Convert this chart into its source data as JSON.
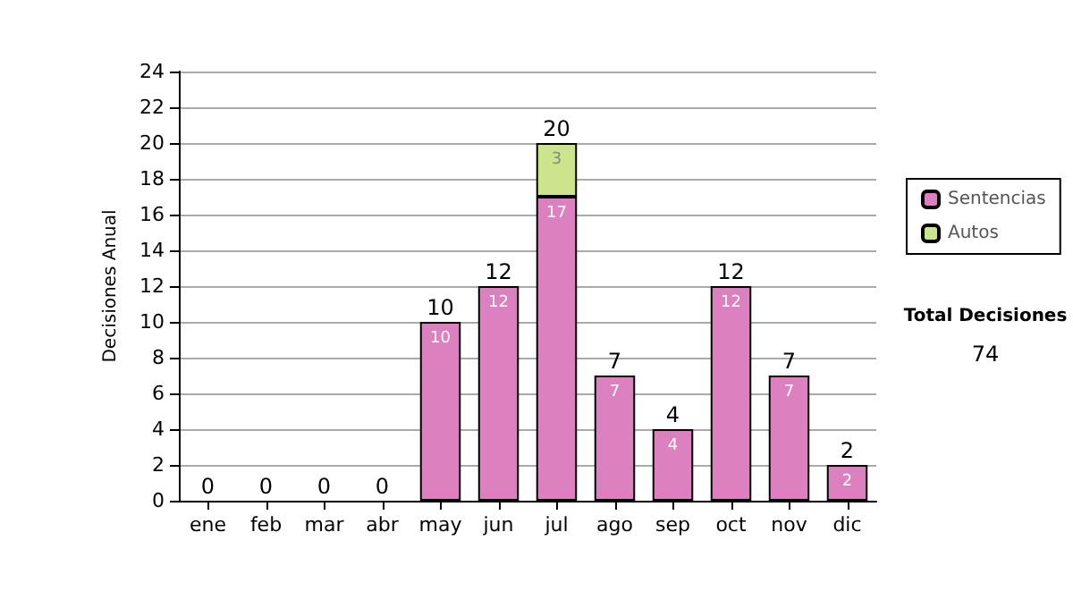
{
  "chart_data": {
    "type": "bar",
    "stacked": true,
    "ylabel": "Decisiones Anual",
    "categories": [
      "ene",
      "feb",
      "mar",
      "abr",
      "may",
      "jun",
      "jul",
      "ago",
      "sep",
      "oct",
      "nov",
      "dic"
    ],
    "series": [
      {
        "name": "Sentencias",
        "color": "#dd80c0",
        "values": [
          0,
          0,
          0,
          0,
          10,
          12,
          17,
          7,
          4,
          12,
          7,
          2
        ],
        "value_labels": [
          null,
          null,
          null,
          null,
          "10",
          "12",
          "17",
          "7",
          "4",
          "12",
          "7",
          "2"
        ]
      },
      {
        "name": "Autos",
        "color": "#cce48c",
        "values": [
          0,
          0,
          0,
          0,
          0,
          0,
          3,
          0,
          0,
          0,
          0,
          0
        ],
        "value_labels": [
          null,
          null,
          null,
          null,
          null,
          null,
          "3",
          null,
          null,
          null,
          null,
          null
        ]
      }
    ],
    "totals": [
      "0",
      "0",
      "0",
      "0",
      "10",
      "12",
      "20",
      "7",
      "4",
      "12",
      "7",
      "2"
    ],
    "ylim": [
      0,
      24
    ],
    "yticks": [
      0,
      2,
      4,
      6,
      8,
      10,
      12,
      14,
      16,
      18,
      20,
      22,
      24
    ],
    "grid": "y",
    "legend": "right",
    "annotations": [
      "Total Decisiones",
      "74"
    ]
  }
}
